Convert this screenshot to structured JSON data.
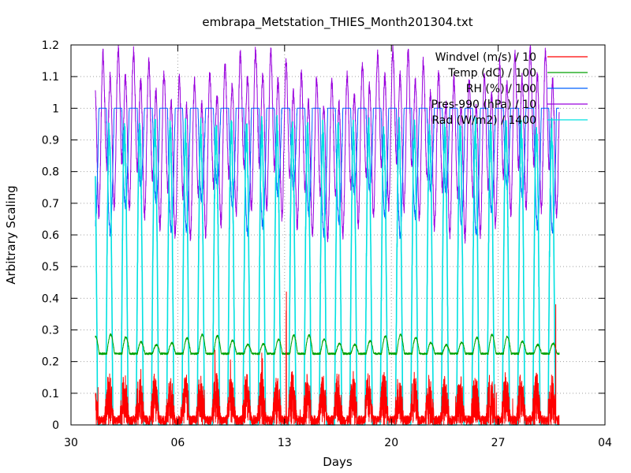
{
  "chart_data": {
    "type": "line",
    "title": "embrapa_Metstation_THIES_Month201304.txt",
    "xlabel": "Days",
    "ylabel": "Arbitrary Scaling",
    "x_ticks": [
      "30",
      "06",
      "13",
      "20",
      "27",
      "04"
    ],
    "x_tick_days": [
      -1,
      6,
      13,
      20,
      27,
      34
    ],
    "xlim": [
      -1,
      34
    ],
    "ylim": [
      0,
      1.2
    ],
    "y_ticks": [
      "0",
      "0.1",
      "0.2",
      "0.3",
      "0.4",
      "0.5",
      "0.6",
      "0.7",
      "0.8",
      "0.9",
      "1",
      "1.1",
      "1.2"
    ],
    "y_tick_values": [
      0,
      0.1,
      0.2,
      0.3,
      0.4,
      0.5,
      0.6,
      0.7,
      0.8,
      0.9,
      1.0,
      1.1,
      1.2
    ],
    "grid": true,
    "legend_position": "top-right",
    "data_range_days": [
      0.6,
      31.0
    ],
    "series": [
      {
        "name": "Windvel (m/s) / 10",
        "color": "#ff0000",
        "typical_range": [
          0,
          0.18
        ],
        "max": 0.42
      },
      {
        "name": "Temp (dC) / 100",
        "color": "#00a000",
        "typical_range": [
          0.21,
          0.32
        ],
        "max": 0.33
      },
      {
        "name": "RH (%) / 100",
        "color": "#0060ff",
        "typical_range": [
          0.5,
          1.0
        ],
        "max": 1.0
      },
      {
        "name": "Pres-990 (hPa) / 10",
        "color": "#9900dd",
        "typical_range": [
          0.55,
          1.2
        ],
        "max": 1.2
      },
      {
        "name": "Rad (W/m2) / 1400",
        "color": "#00e0e0",
        "typical_range": [
          0,
          0.98
        ],
        "max": 1.0
      }
    ]
  }
}
